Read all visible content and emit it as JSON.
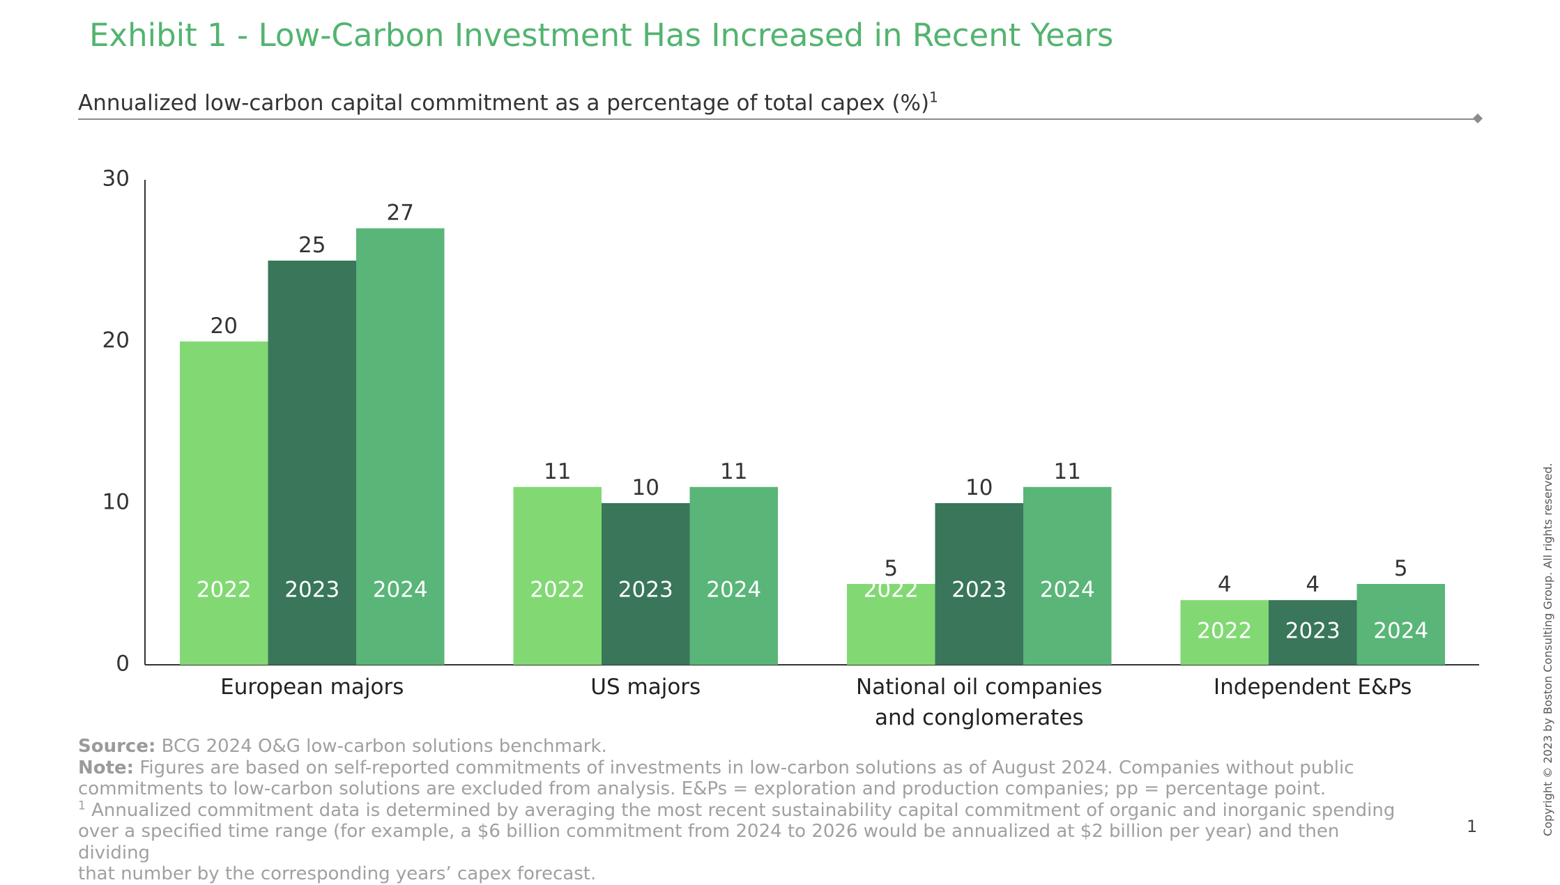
{
  "header": {
    "title": "Exhibit 1 - Low-Carbon Investment Has Increased in Recent Years",
    "subtitle": "Annualized low-carbon capital commitment as a percentage of total capex (%)",
    "subtitle_footnote_mark": "1"
  },
  "chart_data": {
    "type": "bar",
    "title": "Annualized low-carbon capital commitment as a percentage of total capex (%)",
    "categories": [
      [
        "European majors"
      ],
      [
        "US majors"
      ],
      [
        "National oil companies",
        "and conglomerates"
      ],
      [
        "Independent E&Ps"
      ]
    ],
    "series": [
      {
        "name": "2022",
        "color": "#82d974",
        "values": [
          20,
          11,
          5,
          4
        ]
      },
      {
        "name": "2023",
        "color": "#39765a",
        "values": [
          25,
          10,
          10,
          4
        ]
      },
      {
        "name": "2024",
        "color": "#5ab578",
        "values": [
          27,
          11,
          11,
          5
        ]
      }
    ],
    "series_label_position": "inside-bar",
    "data_labels": true,
    "ylim": [
      0,
      30
    ],
    "yticks": [
      0,
      10,
      20,
      30
    ],
    "grid": false,
    "legend": "none"
  },
  "footnotes": {
    "source_label": "Source:",
    "source_text": " BCG 2024 O&G low-carbon solutions benchmark.",
    "note_label": "Note:",
    "note_text_1": " Figures are based on self-reported commitments of investments in low-carbon solutions as of August 2024. Companies without public",
    "note_text_2": "commitments to low-carbon solutions are excluded from analysis. E&Ps = exploration and production companies; pp = percentage point.",
    "fn_mark": "1",
    "fn_text_1": " Annualized commitment data is determined by averaging the most recent sustainability capital commitment of organic and inorganic spending",
    "fn_text_2": "over a specified time range (for example, a $6 billion commitment from 2024 to 2026 would be annualized at $2 billion per year) and then dividing",
    "fn_text_3": "that number by the corresponding years’ capex forecast."
  },
  "page_number": "1",
  "copyright": "Copyright © 2023 by Boston Consulting Group. All rights reserved."
}
